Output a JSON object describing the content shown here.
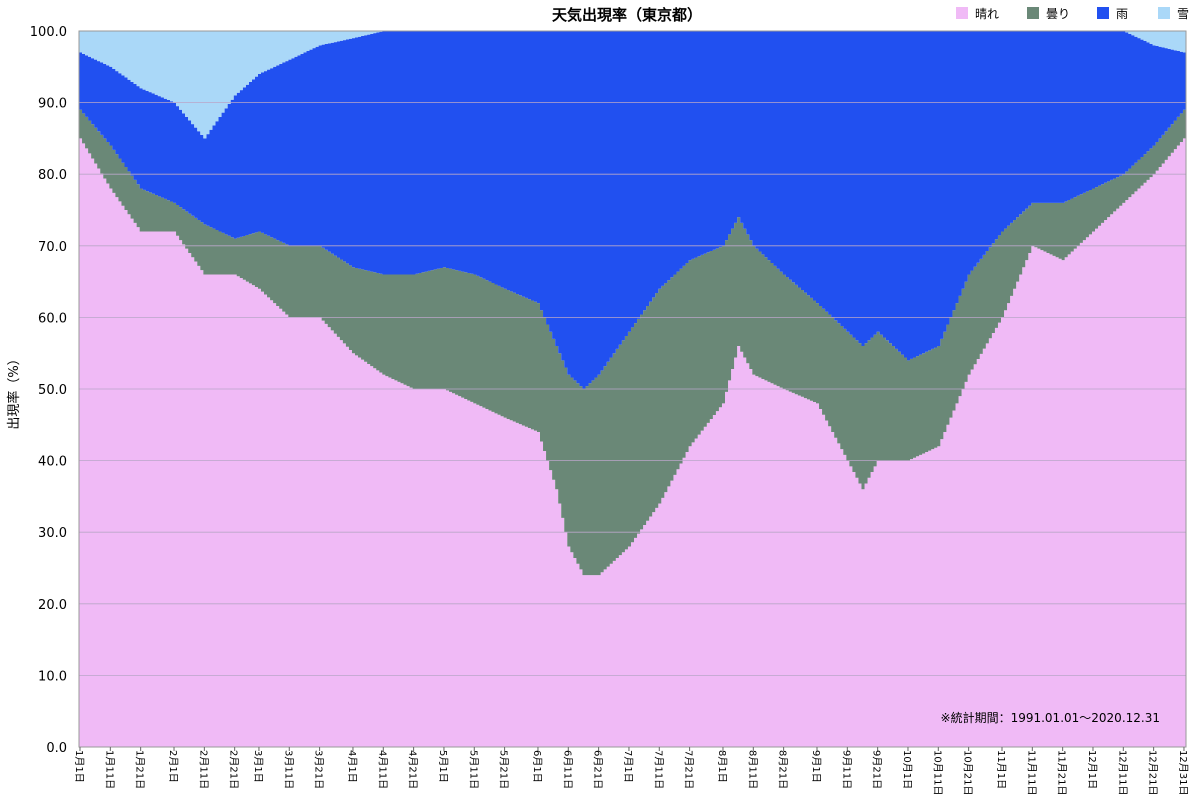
{
  "chart_data": {
    "type": "area",
    "stacked": true,
    "title": "天気出現率（東京都）",
    "ylabel": "出現率（%）",
    "xlabel": "",
    "ylim": [
      0,
      100
    ],
    "yticks": [
      "0.0",
      "10.0",
      "20.0",
      "30.0",
      "40.0",
      "50.0",
      "60.0",
      "70.0",
      "80.0",
      "90.0",
      "100.0"
    ],
    "grid": true,
    "legend": "top-right",
    "note": "※統計期間：1991.01.01〜2020.12.31",
    "x_ticks": [
      "1月1日",
      "1月11日",
      "1月21日",
      "2月1日",
      "2月11日",
      "2月21日",
      "3月1日",
      "3月11日",
      "3月21日",
      "4月1日",
      "4月11日",
      "4月21日",
      "5月1日",
      "5月11日",
      "5月21日",
      "6月1日",
      "6月11日",
      "6月21日",
      "7月1日",
      "7月11日",
      "7月21日",
      "8月1日",
      "8月11日",
      "8月21日",
      "9月1日",
      "9月11日",
      "9月21日",
      "10月1日",
      "10月11日",
      "10月21日",
      "11月1日",
      "11月11日",
      "11月21日",
      "12月1日",
      "12月11日",
      "12月21日",
      "12月31日"
    ],
    "x_tick_days": [
      1,
      11,
      21,
      32,
      42,
      52,
      60,
      70,
      80,
      91,
      101,
      111,
      121,
      131,
      141,
      152,
      162,
      172,
      182,
      192,
      202,
      213,
      223,
      233,
      244,
      254,
      264,
      274,
      284,
      294,
      305,
      315,
      325,
      335,
      345,
      355,
      365
    ],
    "days_in_year": 365,
    "smoothing_note": "",
    "anchors": {
      "day": [
        1,
        11,
        21,
        32,
        42,
        52,
        60,
        70,
        80,
        91,
        101,
        111,
        121,
        131,
        141,
        152,
        158,
        162,
        167,
        172,
        182,
        192,
        202,
        213,
        218,
        223,
        233,
        244,
        254,
        259,
        264,
        274,
        284,
        294,
        305,
        315,
        325,
        335,
        345,
        355,
        365
      ],
      "sunny": [
        85,
        78,
        72,
        72,
        66,
        66,
        64,
        60,
        60,
        55,
        52,
        50,
        50,
        48,
        46,
        44,
        36,
        28,
        24,
        24,
        28,
        34,
        42,
        48,
        56,
        52,
        50,
        48,
        40,
        36,
        40,
        40,
        42,
        52,
        60,
        70,
        68,
        72,
        76,
        80,
        85
      ],
      "cloudy": [
        4,
        6,
        6,
        4,
        7,
        5,
        8,
        10,
        10,
        12,
        14,
        16,
        17,
        18,
        18,
        18,
        20,
        24,
        26,
        28,
        30,
        30,
        26,
        22,
        18,
        18,
        16,
        14,
        18,
        20,
        18,
        14,
        14,
        14,
        12,
        6,
        8,
        6,
        4,
        4,
        4
      ],
      "rain": [
        8,
        11,
        14,
        14,
        12,
        20,
        22,
        26,
        28,
        32,
        34,
        34,
        33,
        34,
        36,
        38,
        44,
        48,
        50,
        48,
        42,
        36,
        32,
        30,
        26,
        30,
        34,
        38,
        42,
        44,
        42,
        46,
        44,
        34,
        28,
        24,
        24,
        22,
        20,
        14,
        8
      ],
      "snow": [
        3,
        5,
        8,
        10,
        15,
        9,
        6,
        4,
        2,
        1,
        0,
        0,
        0,
        0,
        0,
        0,
        0,
        0,
        0,
        0,
        0,
        0,
        0,
        0,
        0,
        0,
        0,
        0,
        0,
        0,
        0,
        0,
        0,
        0,
        0,
        0,
        0,
        0,
        0,
        2,
        3
      ]
    },
    "series": [
      {
        "name": "晴れ",
        "color": "#f0baf6"
      },
      {
        "name": "曇り",
        "color": "#6a8877"
      },
      {
        "name": "雨",
        "color": "#2150f0"
      },
      {
        "name": "雪",
        "color": "#aad8f8"
      }
    ]
  }
}
